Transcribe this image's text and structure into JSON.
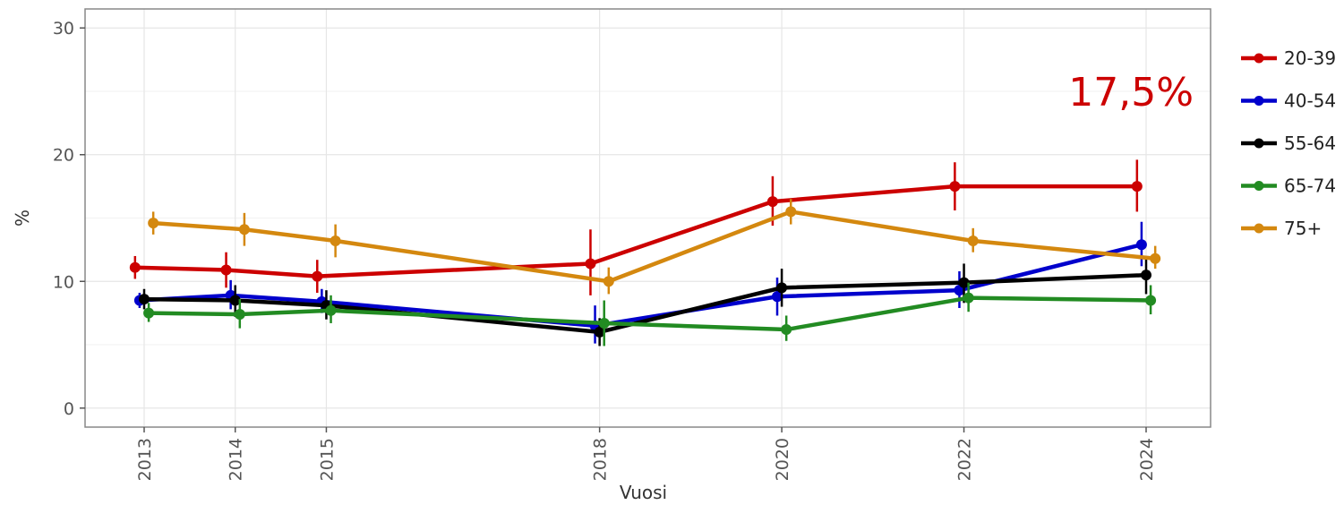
{
  "chart_data": {
    "type": "line",
    "title": "",
    "xlabel": "Vuosi",
    "ylabel": "%",
    "x": [
      2013,
      2014,
      2015,
      2018,
      2020,
      2022,
      2024
    ],
    "x_tick_labels": [
      "2013",
      "2014",
      "2015",
      "2018",
      "2020",
      "2022",
      "2024"
    ],
    "ylim": [
      -1.5,
      31.5
    ],
    "y_ticks": [
      0,
      10,
      20,
      30
    ],
    "y_tick_labels": [
      "0",
      "10",
      "20",
      "30"
    ],
    "grid": true,
    "legend_position": "right",
    "annotation": {
      "text": "17,5%",
      "color": "#cc0000"
    },
    "series": [
      {
        "name": "20-39",
        "color": "#cc0000",
        "dodge": -0.1,
        "values": [
          11.1,
          10.9,
          10.4,
          11.4,
          16.3,
          17.5,
          17.5
        ],
        "lower": [
          10.2,
          9.5,
          9.1,
          8.9,
          14.4,
          15.6,
          15.5
        ],
        "upper": [
          12.0,
          12.3,
          11.7,
          14.1,
          18.3,
          19.4,
          19.6
        ]
      },
      {
        "name": "40-54",
        "color": "#0000cc",
        "dodge": -0.05,
        "values": [
          8.5,
          8.9,
          8.4,
          6.5,
          8.8,
          9.3,
          12.9
        ],
        "lower": [
          7.9,
          7.8,
          7.5,
          5.1,
          7.3,
          7.9,
          11.2
        ],
        "upper": [
          9.1,
          10.1,
          9.4,
          8.1,
          10.3,
          10.8,
          14.7
        ]
      },
      {
        "name": "55-64",
        "color": "#000000",
        "dodge": 0.0,
        "values": [
          8.6,
          8.5,
          8.1,
          6.0,
          9.5,
          9.9,
          10.5
        ],
        "lower": [
          7.8,
          7.2,
          7.0,
          4.9,
          8.0,
          8.3,
          9.0
        ],
        "upper": [
          9.4,
          9.7,
          9.3,
          7.1,
          11.0,
          11.4,
          12.0
        ]
      },
      {
        "name": "65-74",
        "color": "#228b22",
        "dodge": 0.05,
        "values": [
          7.5,
          7.4,
          7.7,
          6.7,
          6.2,
          8.7,
          8.5
        ],
        "lower": [
          6.8,
          6.3,
          6.7,
          4.9,
          5.3,
          7.6,
          7.4
        ],
        "upper": [
          8.3,
          8.6,
          8.9,
          8.5,
          7.3,
          9.9,
          9.7
        ]
      },
      {
        "name": "75+",
        "color": "#d4880f",
        "dodge": 0.1,
        "values": [
          14.6,
          14.1,
          13.2,
          10.0,
          15.5,
          13.2,
          11.8
        ],
        "lower": [
          13.7,
          12.8,
          11.9,
          9.0,
          14.5,
          12.3,
          11.0
        ],
        "upper": [
          15.5,
          15.4,
          14.5,
          11.1,
          16.5,
          14.2,
          12.8
        ]
      }
    ]
  }
}
